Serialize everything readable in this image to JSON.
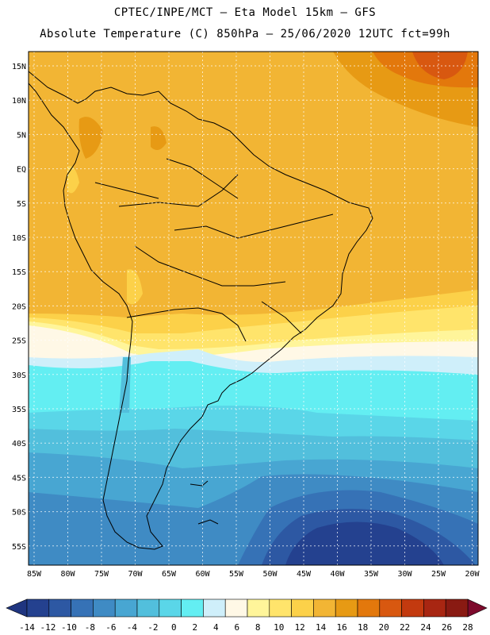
{
  "header": {
    "line1": "CPTEC/INPE/MCT —  Eta Model 15km — GFS",
    "line2": "Absolute Temperature (C) 850hPa — 25/06/2020 12UTC fct=99h"
  },
  "map": {
    "lat_labels": [
      "15N",
      "10N",
      "5N",
      "EQ",
      "5S",
      "10S",
      "15S",
      "20S",
      "25S",
      "30S",
      "35S",
      "40S",
      "45S",
      "50S",
      "55S"
    ],
    "lon_labels": [
      "85W",
      "80W",
      "75W",
      "70W",
      "65W",
      "60W",
      "55W",
      "50W",
      "45W",
      "40W",
      "35W",
      "30W",
      "25W",
      "20W"
    ],
    "grid": true
  },
  "colorbar": {
    "ticks": [
      "-14",
      "-12",
      "-10",
      "-8",
      "-6",
      "-4",
      "-2",
      "0",
      "2",
      "4",
      "6",
      "8",
      "10",
      "12",
      "14",
      "16",
      "18",
      "20",
      "22",
      "24",
      "26",
      "28"
    ],
    "colors": [
      "#24418f",
      "#2d58a3",
      "#3672b6",
      "#3f8bc4",
      "#48a6d2",
      "#52bfdc",
      "#5ad6e8",
      "#63eef2",
      "#cfeffa",
      "#fff8e6",
      "#fff59a",
      "#ffe46b",
      "#fcd149",
      "#f2b534",
      "#e79a14",
      "#e3780c",
      "#d85810",
      "#c33a0f",
      "#a82612",
      "#891a12"
    ],
    "low_arrow_color": "#1f3580",
    "high_arrow_color": "#7d0a2c"
  }
}
